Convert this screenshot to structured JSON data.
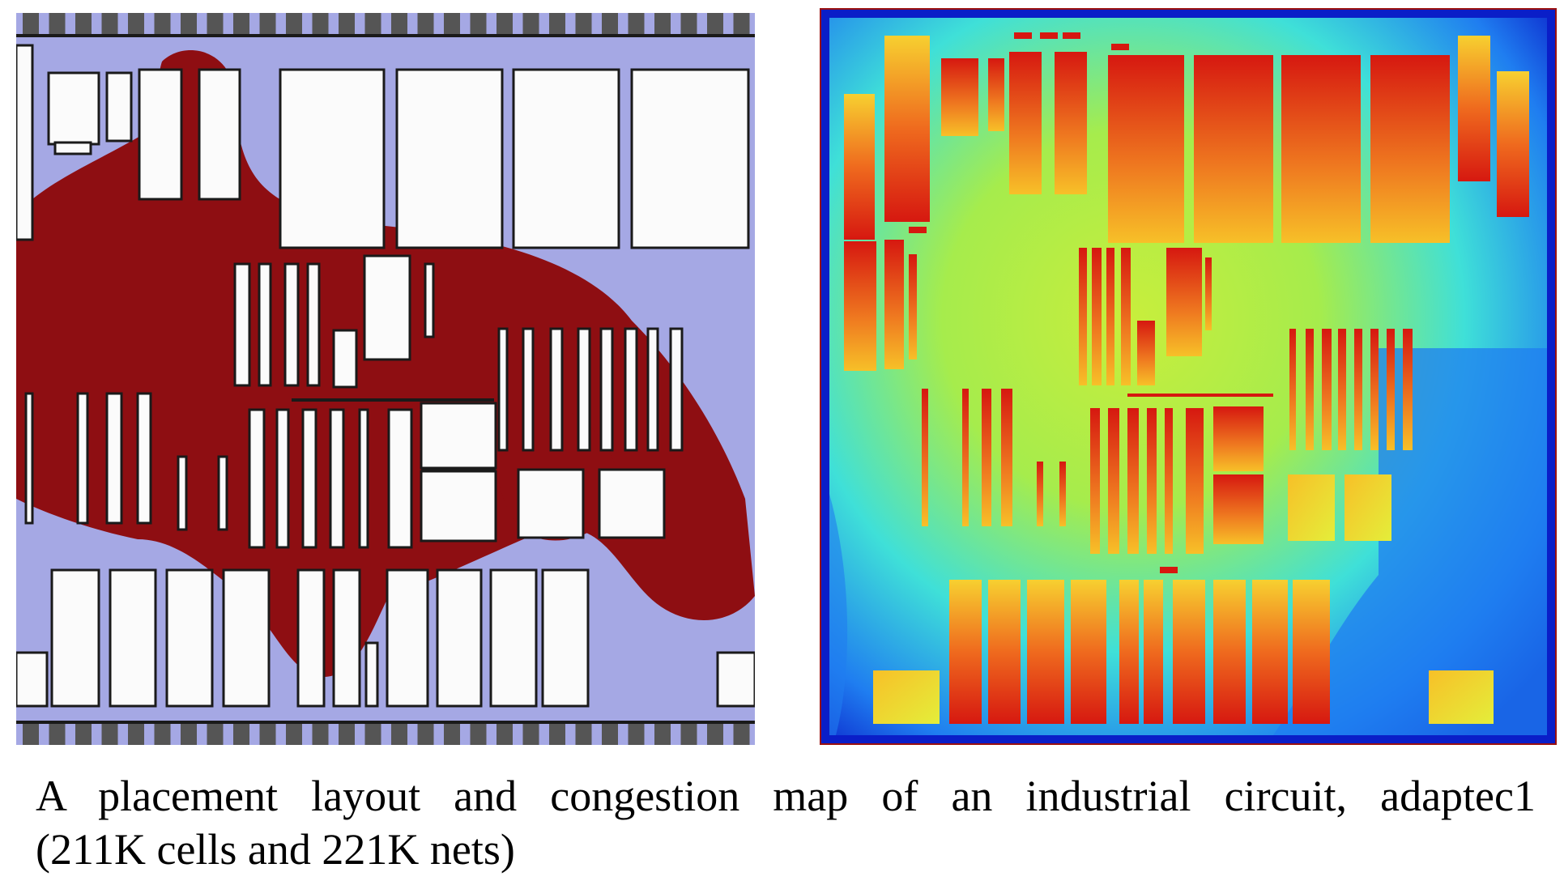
{
  "figure": {
    "panels": [
      {
        "name": "placement-layout",
        "colors": {
          "background": "#a5a8e4",
          "cells": "#8e0e12",
          "macro": "#fbfbfb",
          "outline": "#1a1a1a",
          "pad": "#555555"
        }
      },
      {
        "name": "congestion-map",
        "colors": {
          "edge": "#0a1ec8",
          "low": "#1f7df0",
          "mid": "#3fe0d8",
          "midhigh": "#c8ee3c",
          "high": "#f7c028",
          "max": "#d61810",
          "border": "#9a1010"
        }
      }
    ]
  },
  "caption": {
    "line1": "A placement layout and congestion map of an industrial circuit, adaptec1",
    "line2": "(211K cells and 221K nets)"
  }
}
